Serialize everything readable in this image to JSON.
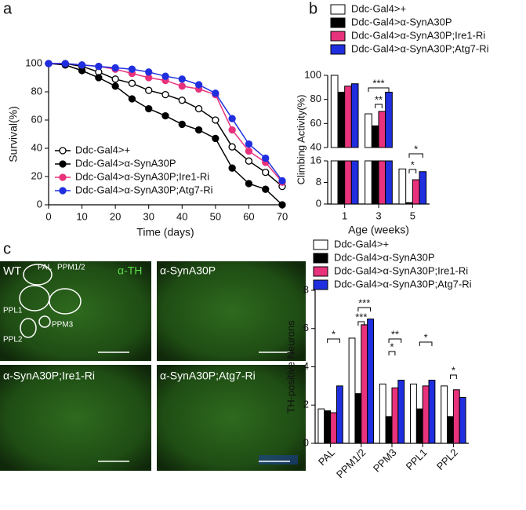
{
  "panel_labels": [
    "a",
    "b",
    "c"
  ],
  "images": [
    {
      "title": "WT",
      "stain": "α-TH",
      "regions": [
        "PAL",
        "PPM1/2",
        "PPL1",
        "PPM3",
        "PPL2"
      ]
    },
    {
      "title": "α-SynA30P"
    },
    {
      "title": "α-SynA30P;Ire1-Ri"
    },
    {
      "title": "α-SynA30P;Atg7-Ri"
    }
  ],
  "chart_data": [
    {
      "type": "line",
      "xlabel": "Time (days)",
      "ylabel": "Survival(%)",
      "x": [
        0,
        5,
        10,
        15,
        20,
        25,
        30,
        35,
        40,
        45,
        50,
        55,
        60,
        65,
        70
      ],
      "xlim": [
        0,
        70
      ],
      "xticks": [
        0,
        10,
        20,
        30,
        40,
        50,
        60,
        70
      ],
      "ylim": [
        0,
        100
      ],
      "yticks": [
        0,
        20,
        40,
        60,
        80,
        100
      ],
      "series": [
        {
          "name": "Ddc-Gal4>+",
          "color": "#000000",
          "marker_fill": "#ffffff",
          "values": [
            100,
            100,
            98,
            94,
            89,
            86,
            81,
            78,
            74,
            68,
            60,
            41,
            31,
            23,
            13
          ]
        },
        {
          "name": "Ddc-Gal4>α-SynA30P",
          "color": "#000000",
          "marker_fill": "#000000",
          "values": [
            100,
            99,
            95,
            90,
            84,
            75,
            68,
            63,
            57,
            53,
            47,
            26,
            15,
            11,
            0
          ]
        },
        {
          "name": "Ddc-Gal4>α-SynA30P;Ire1-Ri",
          "color": "#e8327c",
          "marker_fill": "#e8327c",
          "values": [
            100,
            100,
            99,
            98,
            96,
            93,
            90,
            88,
            84,
            82,
            78,
            53,
            38,
            30,
            16
          ]
        },
        {
          "name": "Ddc-Gal4>α-SynA30P;Atg7-Ri",
          "color": "#1f2fe0",
          "marker_fill": "#1f2fe0",
          "values": [
            100,
            100,
            99,
            98,
            97,
            96,
            94,
            91,
            89,
            85,
            79,
            61,
            43,
            33,
            17
          ]
        }
      ]
    },
    {
      "type": "bar",
      "xlabel": "Age (weeks)",
      "ylabel": "Climbing Activity(%)",
      "categories": [
        "1",
        "3",
        "5"
      ],
      "ylim": [
        0,
        100
      ],
      "axis_break": [
        16,
        40
      ],
      "yticks": [
        0,
        8,
        16,
        40,
        60,
        80,
        100
      ],
      "annotations": [
        "***",
        "**",
        "*",
        "*"
      ],
      "series": [
        {
          "name": "Ddc-Gal4>+",
          "color": "#ffffff",
          "values": [
            100,
            68,
            13
          ]
        },
        {
          "name": "Ddc-Gal4>α-SynA30P",
          "color": "#000000",
          "values": [
            86,
            58,
            0.5
          ]
        },
        {
          "name": "Ddc-Gal4>α-SynA30P;Ire1-Ri",
          "color": "#e8327c",
          "values": [
            91,
            70,
            9
          ]
        },
        {
          "name": "Ddc-Gal4>α-SynA30P;Atg7-Ri",
          "color": "#1f2fe0",
          "values": [
            93,
            86,
            12
          ]
        }
      ]
    },
    {
      "type": "bar",
      "ylabel": "TH-positive Neurons",
      "categories": [
        "PAL",
        "PPM1/2",
        "PPM3",
        "PPL1",
        "PPL2"
      ],
      "ylim": [
        0,
        8
      ],
      "yticks": [
        0,
        2,
        4,
        6,
        8
      ],
      "annotations": [
        "*",
        "***",
        "***",
        "**",
        "*",
        "*",
        "*"
      ],
      "series": [
        {
          "name": "Ddc-Gal4>+",
          "color": "#ffffff",
          "values": [
            1.8,
            5.5,
            3.1,
            3.1,
            3.0
          ]
        },
        {
          "name": "Ddc-Gal4>α-SynA30P",
          "color": "#000000",
          "values": [
            1.7,
            2.6,
            1.4,
            1.8,
            1.4
          ]
        },
        {
          "name": "Ddc-Gal4>α-SynA30P;Ire1-Ri",
          "color": "#e8327c",
          "values": [
            1.6,
            6.2,
            2.9,
            3.0,
            2.8
          ]
        },
        {
          "name": "Ddc-Gal4>α-SynA30P;Atg7-Ri",
          "color": "#1f2fe0",
          "values": [
            3.0,
            6.5,
            3.3,
            3.3,
            2.4
          ]
        }
      ]
    }
  ]
}
